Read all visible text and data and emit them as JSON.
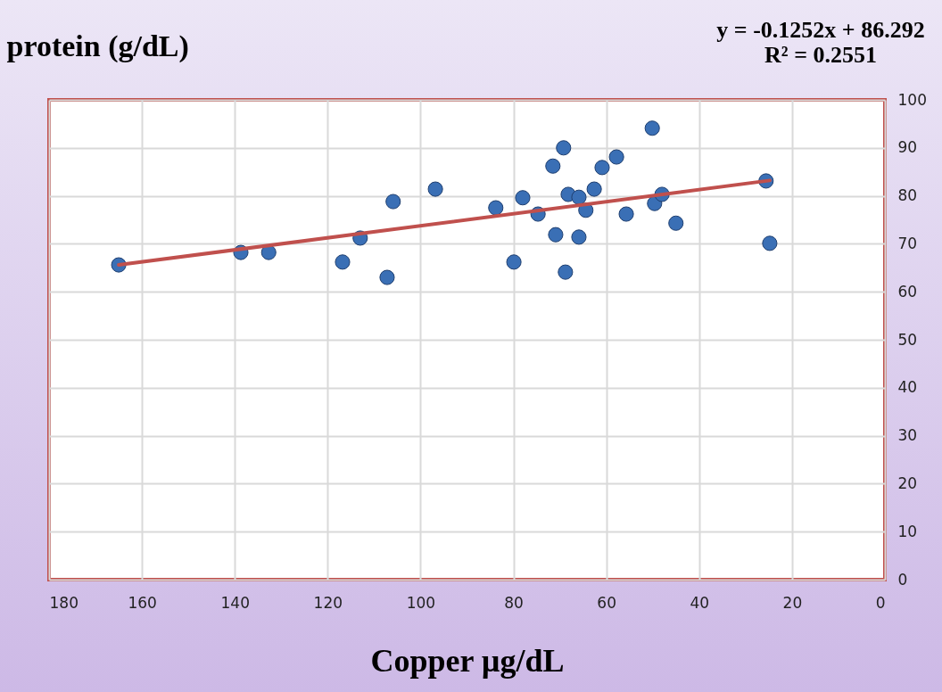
{
  "chart_data": {
    "type": "scatter",
    "xlabel": "Copper µg/dL",
    "ylabel": "protein (g/dL)",
    "annotations": [
      "y = -0.1252x + 86.292",
      "R² = 0.2551"
    ],
    "xlim": [
      180,
      0
    ],
    "xticks": [
      180,
      160,
      140,
      120,
      100,
      80,
      60,
      40,
      20,
      0
    ],
    "ylim": [
      0,
      100
    ],
    "yticks": [
      0,
      10,
      20,
      30,
      40,
      50,
      60,
      70,
      80,
      90,
      100
    ],
    "grid": true,
    "marker": "circle",
    "series": [
      {
        "color": "#3a6fb5",
        "x": [
          165.0,
          138.7,
          132.7,
          116.8,
          113.0,
          107.2,
          105.9,
          96.8,
          83.8,
          79.9,
          78.0,
          74.7,
          71.5,
          70.9,
          69.2,
          68.8,
          68.2,
          65.9,
          65.9,
          64.4,
          62.6,
          60.9,
          57.8,
          55.7,
          50.1,
          49.6,
          48.0,
          45.0,
          25.6,
          24.8
        ],
        "values": [
          65.6,
          68.2,
          68.2,
          66.2,
          71.2,
          63.0,
          78.8,
          81.4,
          77.5,
          66.2,
          79.6,
          76.2,
          86.2,
          71.9,
          90.0,
          64.1,
          80.3,
          79.7,
          71.4,
          77.0,
          81.4,
          85.9,
          88.1,
          76.2,
          94.1,
          78.4,
          80.3,
          74.3,
          83.1,
          70.1
        ]
      },
      {
        "type": "line",
        "marker": "none",
        "color": "#c0504d",
        "x": [
          165.0,
          24.8
        ],
        "values": [
          65.6,
          83.2
        ]
      }
    ]
  }
}
